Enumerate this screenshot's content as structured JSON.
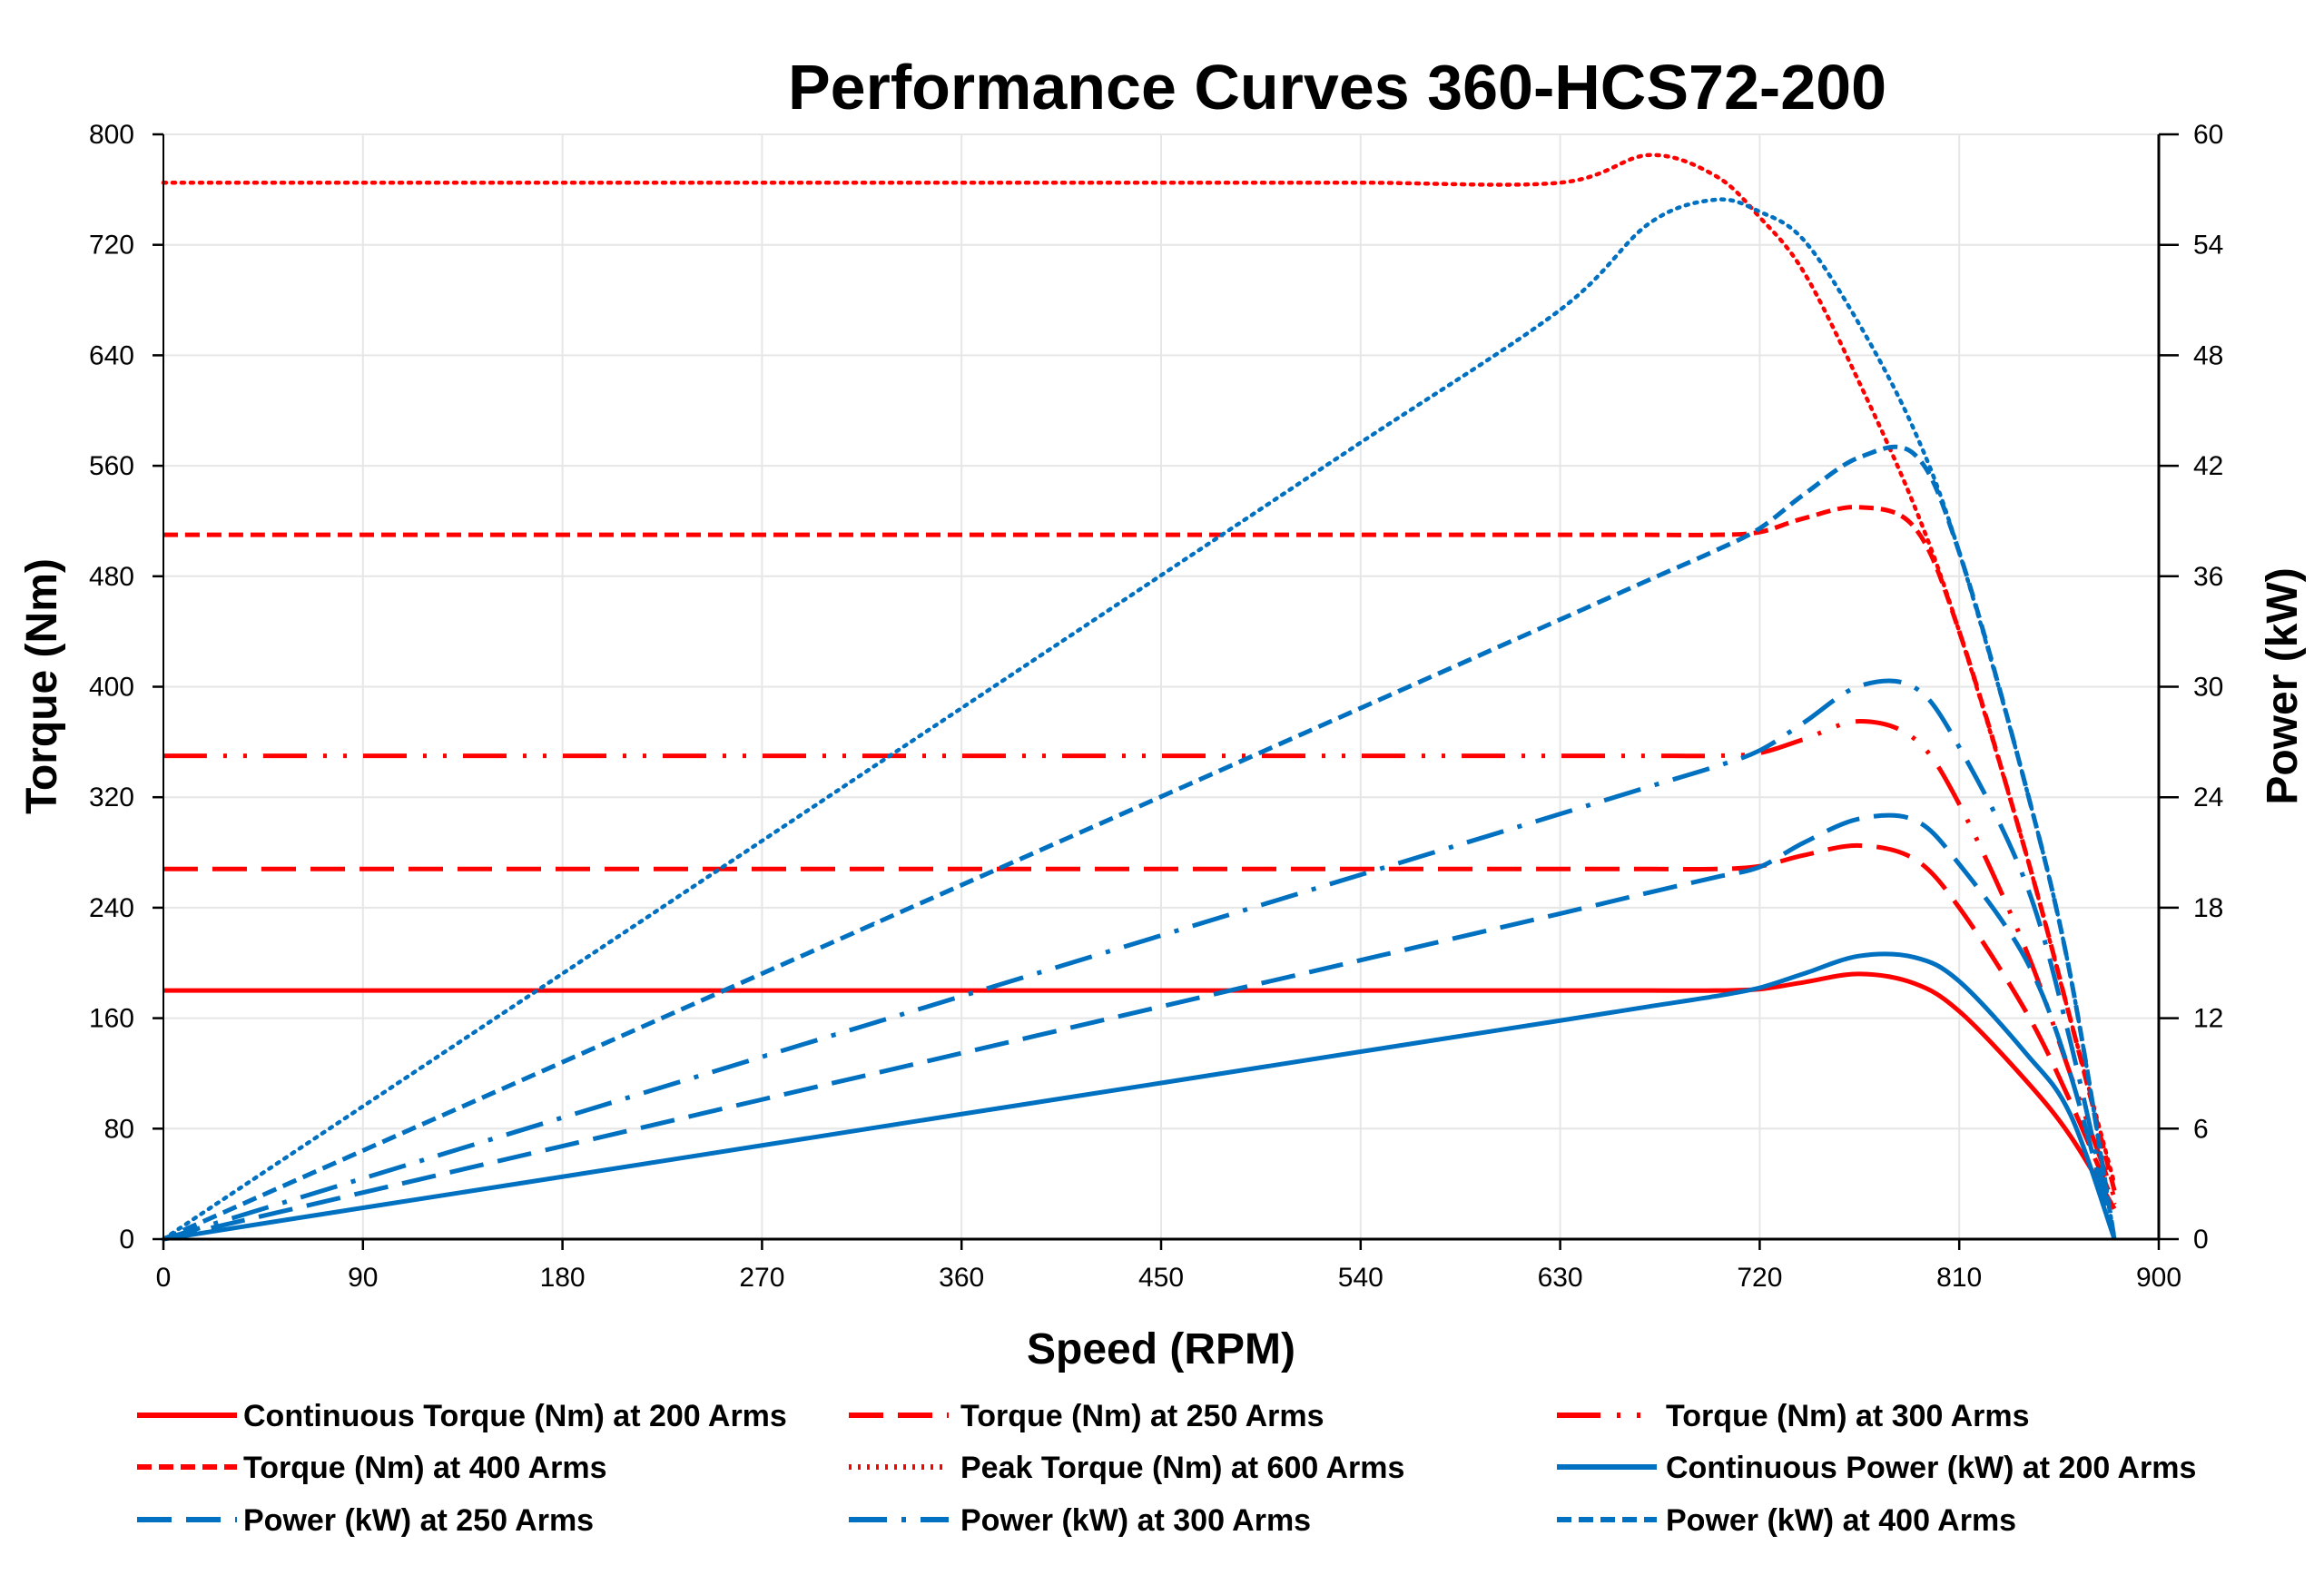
{
  "chart_data": {
    "type": "line",
    "title": "Performance Curves 360-HCS72-200",
    "xlabel": "Speed (RPM)",
    "ylabel": "Torque (Nm)",
    "y2label": "Power (kW)",
    "xlim": [
      0,
      900
    ],
    "ylim": [
      0,
      800
    ],
    "y2lim": [
      0,
      60
    ],
    "xticks": [
      0,
      90,
      180,
      270,
      360,
      450,
      540,
      630,
      720,
      810,
      900
    ],
    "yticks": [
      0,
      80,
      160,
      240,
      320,
      400,
      480,
      560,
      640,
      720,
      800
    ],
    "y2ticks": [
      0,
      6,
      12,
      18,
      24,
      30,
      36,
      42,
      48,
      54,
      60
    ],
    "grid": true,
    "legend_position": "bottom",
    "x": [
      0,
      90,
      180,
      270,
      360,
      450,
      540,
      630,
      670,
      700,
      720,
      740,
      765,
      790,
      810,
      840,
      860,
      880
    ],
    "series": [
      {
        "name": "Continuous Torque (Nm) at 200 Arms",
        "axis": "left",
        "color": "#ff0000",
        "style": "solid",
        "values": [
          180,
          180,
          180,
          180,
          180,
          180,
          180,
          180,
          180,
          180,
          181,
          186,
          192,
          185,
          165,
          115,
          75,
          22
        ]
      },
      {
        "name": "Torque (Nm) at 250 Arms",
        "axis": "left",
        "color": "#ff0000",
        "style": "long-dash",
        "values": [
          268,
          268,
          268,
          268,
          268,
          268,
          268,
          268,
          268,
          268,
          270,
          278,
          285,
          275,
          240,
          165,
          100,
          25
        ]
      },
      {
        "name": "Torque (Nm) at 300 Arms",
        "axis": "left",
        "color": "#ff0000",
        "style": "long-dash-dot-dot",
        "values": [
          350,
          350,
          350,
          350,
          350,
          350,
          350,
          350,
          350,
          350,
          352,
          362,
          375,
          362,
          315,
          210,
          120,
          30
        ]
      },
      {
        "name": "Torque (Nm) at 400 Arms",
        "axis": "left",
        "color": "#ff0000",
        "style": "short-dash",
        "values": [
          510,
          510,
          510,
          510,
          510,
          510,
          510,
          510,
          510,
          510,
          512,
          522,
          530,
          515,
          440,
          280,
          160,
          35
        ]
      },
      {
        "name": "Peak Torque (Nm) at 600  Arms",
        "axis": "left",
        "color": "#ff0000",
        "style": "dotted",
        "values": [
          765,
          765,
          765,
          765,
          765,
          765,
          765,
          765,
          785,
          770,
          740,
          700,
          620,
          530,
          440,
          280,
          160,
          40
        ]
      },
      {
        "name": "Continuous Power (kW) at 200 Arms",
        "axis": "right",
        "color": "#0070c0",
        "style": "solid",
        "values": [
          0,
          1.7,
          3.39,
          5.09,
          6.79,
          8.48,
          10.18,
          11.87,
          12.63,
          13.19,
          13.65,
          14.42,
          15.38,
          15.3,
          14.0,
          10.1,
          6.8,
          0
        ]
      },
      {
        "name": "Power (kW) at 250 Arms",
        "axis": "right",
        "color": "#0070c0",
        "style": "long-dash",
        "values": [
          0,
          2.53,
          5.05,
          7.58,
          10.1,
          12.63,
          15.15,
          17.68,
          18.82,
          19.65,
          20.21,
          21.54,
          22.83,
          22.75,
          20.36,
          15.2,
          9.0,
          0
        ]
      },
      {
        "name": "Power (kW) at 300 Arms",
        "axis": "right",
        "color": "#0070c0",
        "style": "long-dash-dot",
        "values": [
          0,
          3.3,
          6.6,
          9.9,
          13.19,
          16.49,
          19.79,
          23.09,
          24.57,
          25.66,
          26.54,
          28.06,
          30.04,
          29.95,
          26.72,
          19.35,
          10.8,
          0
        ]
      },
      {
        "name": "Power (kW) at 400 Arms",
        "axis": "right",
        "color": "#0070c0",
        "style": "short-dash",
        "values": [
          0,
          4.81,
          9.61,
          14.42,
          19.23,
          24.03,
          28.84,
          33.65,
          35.8,
          37.39,
          38.6,
          40.45,
          42.46,
          42.6,
          37.3,
          24.6,
          14.4,
          0
        ]
      },
      {
        "axis": "right",
        "color": "#0070c0",
        "style": "dotted",
        "values": [
          0,
          7.21,
          14.42,
          21.63,
          28.84,
          36.05,
          43.26,
          50.47,
          55.15,
          56.45,
          55.8,
          54.24,
          49.67,
          43.85,
          37.3,
          24.6,
          14.4,
          0
        ]
      }
    ]
  }
}
